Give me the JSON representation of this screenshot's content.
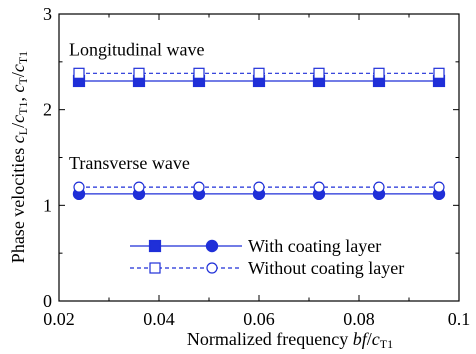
{
  "chart_data": {
    "type": "line",
    "title": "",
    "xlabel": "Normalized frequency bf/cT1",
    "ylabel": "Phase velocities cL/cT1, cT/cT1",
    "xlim": [
      0.02,
      0.1
    ],
    "ylim": [
      0,
      3
    ],
    "x_ticks": [
      "0.02",
      "0.04",
      "0.06",
      "0.08",
      "0.1"
    ],
    "y_ticks": [
      "0",
      "1",
      "2",
      "3"
    ],
    "grid": false,
    "legend_placement": "bottom-right",
    "colors": {
      "series": "#1f2fd8"
    },
    "annotations": [
      {
        "text": "Longitudinal wave",
        "near_series": "longitudinal"
      },
      {
        "text": "Transverse wave",
        "near_series": "transverse"
      }
    ],
    "x": [
      0.024,
      0.036,
      0.048,
      0.06,
      0.072,
      0.084,
      0.096
    ],
    "series": [
      {
        "group": "longitudinal",
        "coating": true,
        "marker": "square-filled",
        "dash": false,
        "values": [
          2.3,
          2.3,
          2.3,
          2.3,
          2.3,
          2.3,
          2.3
        ]
      },
      {
        "group": "longitudinal",
        "coating": false,
        "marker": "square-open",
        "dash": true,
        "values": [
          2.38,
          2.38,
          2.38,
          2.38,
          2.38,
          2.38,
          2.38
        ]
      },
      {
        "group": "transverse",
        "coating": true,
        "marker": "circle-filled",
        "dash": false,
        "values": [
          1.12,
          1.12,
          1.12,
          1.12,
          1.12,
          1.12,
          1.12
        ]
      },
      {
        "group": "transverse",
        "coating": false,
        "marker": "circle-open",
        "dash": true,
        "values": [
          1.19,
          1.19,
          1.19,
          1.19,
          1.19,
          1.19,
          1.19
        ]
      }
    ],
    "legend": [
      {
        "label": "With coating layer",
        "markers": [
          "square-filled",
          "circle-filled"
        ],
        "dash": false
      },
      {
        "label": "Without coating layer",
        "markers": [
          "square-open",
          "circle-open"
        ],
        "dash": true
      }
    ]
  }
}
